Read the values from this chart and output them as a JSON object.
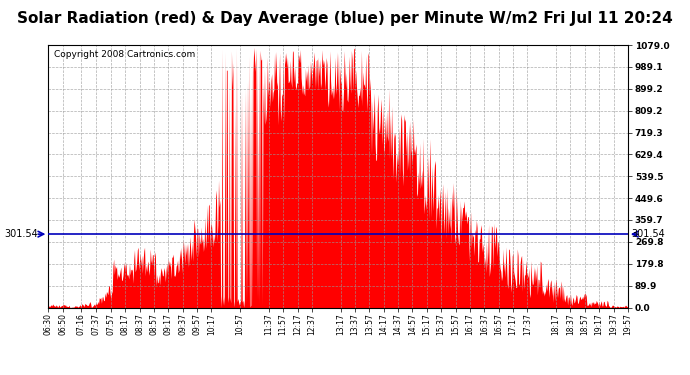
{
  "title": "Solar Radiation (red) & Day Average (blue) per Minute W/m2 Fri Jul 11 20:24",
  "copyright": "Copyright 2008 Cartronics.com",
  "avg_value": 301.54,
  "y_max": 1079.0,
  "y_min": 0.0,
  "y_ticks": [
    0.0,
    89.9,
    179.8,
    269.8,
    359.7,
    449.6,
    539.5,
    629.4,
    719.3,
    809.2,
    899.2,
    989.1,
    1079.0
  ],
  "y_tick_labels": [
    "0.0",
    "89.9",
    "179.8",
    "269.8",
    "359.7",
    "449.6",
    "539.5",
    "629.4",
    "719.3",
    "809.2",
    "899.2",
    "989.1",
    "1079.0"
  ],
  "bg_color": "#ffffff",
  "fill_color": "#ff0000",
  "line_color": "#0000bb",
  "grid_color": "#999999",
  "title_fontsize": 11,
  "copyright_fontsize": 6.5,
  "x_tick_labels": [
    "06:30",
    "06:50",
    "07:16",
    "07:37",
    "07:57",
    "08:17",
    "08:37",
    "08:57",
    "09:17",
    "09:37",
    "09:57",
    "10:17",
    "10:57",
    "11:37",
    "11:57",
    "12:17",
    "12:37",
    "13:17",
    "13:37",
    "13:57",
    "14:17",
    "14:37",
    "14:57",
    "15:17",
    "15:37",
    "15:57",
    "16:17",
    "16:37",
    "16:57",
    "17:17",
    "17:37",
    "18:17",
    "18:37",
    "18:57",
    "19:17",
    "19:37",
    "19:57"
  ]
}
